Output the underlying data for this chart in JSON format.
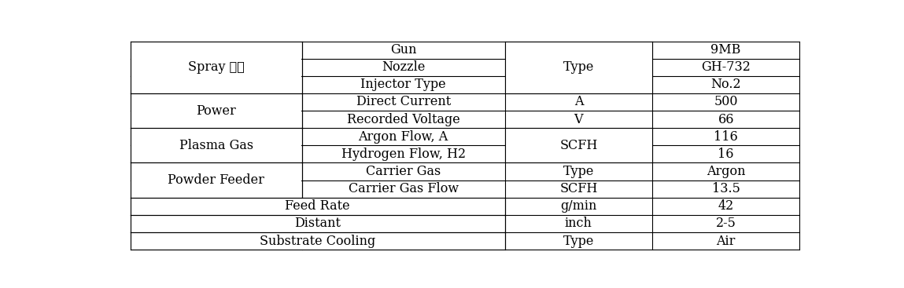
{
  "bg_color": "#ffffff",
  "border_color": "#000000",
  "text_color": "#000000",
  "font_size": 11.5,
  "col1_label_spray": "Spray 장비",
  "col1_label_power": "Power",
  "col1_label_plasma": "Plasma Gas",
  "col1_label_powder": "Powder Feeder",
  "rows": [
    {
      "col1": "Spray 장비",
      "col2": "Gun",
      "col3": "",
      "col4": "9MB",
      "merge12": false,
      "merge_col1_span": 3,
      "merge_col3_span": 3
    },
    {
      "col1": "Spray 장비",
      "col2": "Nozzle",
      "col3": "Type",
      "col4": "GH-732",
      "merge12": false,
      "merge_col1_span": 0,
      "merge_col3_span": 0
    },
    {
      "col1": "Spray 장비",
      "col2": "Injector Type",
      "col3": "",
      "col4": "No.2",
      "merge12": false,
      "merge_col1_span": 0,
      "merge_col3_span": 0
    },
    {
      "col1": "Power",
      "col2": "Direct Current",
      "col3": "A",
      "col4": "500",
      "merge12": false,
      "merge_col1_span": 2,
      "merge_col3_span": 0
    },
    {
      "col1": "Power",
      "col2": "Recorded Voltage",
      "col3": "V",
      "col4": "66",
      "merge12": false,
      "merge_col1_span": 0,
      "merge_col3_span": 0
    },
    {
      "col1": "Plasma Gas",
      "col2": "Argon Flow, A",
      "col3": "SCFH",
      "col4": "116",
      "merge12": false,
      "merge_col1_span": 2,
      "merge_col3_span": 2
    },
    {
      "col1": "Plasma Gas",
      "col2": "Hydrogen Flow, H2",
      "col3": "SCFH",
      "col4": "16",
      "merge12": false,
      "merge_col1_span": 0,
      "merge_col3_span": 0
    },
    {
      "col1": "Powder Feeder",
      "col2": "Carrier Gas",
      "col3": "Type",
      "col4": "Argon",
      "merge12": false,
      "merge_col1_span": 2,
      "merge_col3_span": 0
    },
    {
      "col1": "Powder Feeder",
      "col2": "Carrier Gas Flow",
      "col3": "SCFH",
      "col4": "13.5",
      "merge12": false,
      "merge_col1_span": 0,
      "merge_col3_span": 0
    },
    {
      "col1": "Feed Rate",
      "col2": "",
      "col3": "g/min",
      "col4": "42",
      "merge12": true,
      "merge_col1_span": 1,
      "merge_col3_span": 0
    },
    {
      "col1": "Distant",
      "col2": "",
      "col3": "inch",
      "col4": "2-5",
      "merge12": true,
      "merge_col1_span": 1,
      "merge_col3_span": 0
    },
    {
      "col1": "Substrate Cooling",
      "col2": "",
      "col3": "Type",
      "col4": "Air",
      "merge12": true,
      "merge_col1_span": 1,
      "merge_col3_span": 0
    }
  ],
  "groups_col1": [
    {
      "label": "Spray 장비",
      "r_start": 0,
      "r_end": 2
    },
    {
      "label": "Power",
      "r_start": 3,
      "r_end": 4
    },
    {
      "label": "Plasma Gas",
      "r_start": 5,
      "r_end": 6
    },
    {
      "label": "Powder Feeder",
      "r_start": 7,
      "r_end": 8
    }
  ],
  "groups_col3": [
    {
      "label": "Type",
      "r_start": 0,
      "r_end": 2
    },
    {
      "label": "SCFH",
      "r_start": 5,
      "r_end": 6
    }
  ],
  "groups_col12": [
    {
      "label": "Feed Rate",
      "r_start": 9,
      "r_end": 9
    },
    {
      "label": "Distant",
      "r_start": 10,
      "r_end": 10
    },
    {
      "label": "Substrate Cooling",
      "r_start": 11,
      "r_end": 11
    }
  ]
}
